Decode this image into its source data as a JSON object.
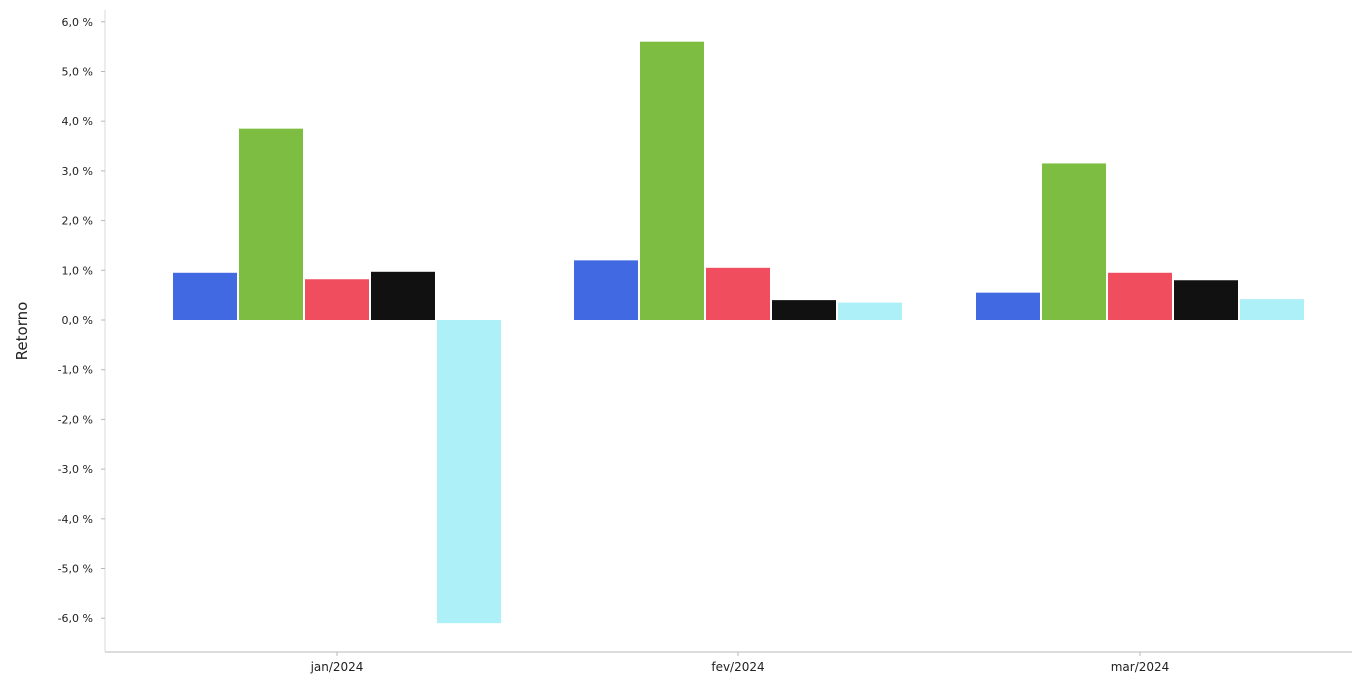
{
  "chart_data": {
    "type": "bar",
    "ylabel": "Retorno",
    "categories": [
      "jan/2024",
      "fev/2024",
      "mar/2024"
    ],
    "ylim": [
      -6.6,
      6.2
    ],
    "yticks": [
      "6,0 %",
      "5,0 %",
      "4,0 %",
      "3,0 %",
      "2,0 %",
      "1,0 %",
      "0,0 %",
      "-1,0 %",
      "-2,0 %",
      "-3,0 %",
      "-4,0 %",
      "-5,0 %",
      "-6,0 %"
    ],
    "ytick_values": [
      6,
      5,
      4,
      3,
      2,
      1,
      0,
      -1,
      -2,
      -3,
      -4,
      -5,
      -6
    ],
    "legend": "none",
    "grid": false,
    "series": [
      {
        "color": "#4169e1",
        "values": [
          0.95,
          1.2,
          0.55
        ]
      },
      {
        "color": "#7cbd42",
        "values": [
          3.85,
          5.6,
          3.15
        ]
      },
      {
        "color": "#f04e5e",
        "values": [
          0.82,
          1.05,
          0.95
        ]
      },
      {
        "color": "#111111",
        "values": [
          0.97,
          0.4,
          0.8
        ]
      },
      {
        "color": "#aef0f7",
        "values": [
          -6.1,
          0.35,
          0.42
        ]
      }
    ]
  }
}
